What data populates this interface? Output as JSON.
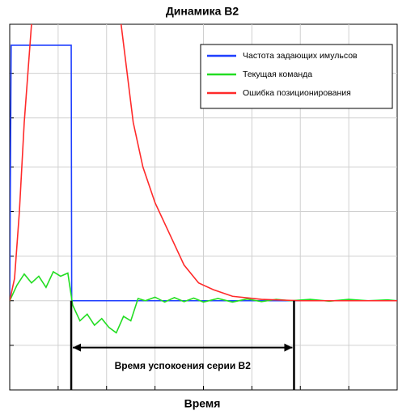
{
  "chart_data": {
    "type": "line",
    "title": "Динамика В2",
    "xlabel": "Время",
    "xlim": [
      0,
      8
    ],
    "xticks": [
      1,
      2,
      3,
      4,
      5,
      6,
      7
    ],
    "ylim": [
      -2,
      6.2
    ],
    "yticks": [
      -1,
      0,
      1,
      2,
      3,
      4.1,
      5.1
    ],
    "grid": true,
    "legend": "upper right",
    "series": [
      {
        "name": "Частота задающих имульсов",
        "color": "#1f3fff",
        "x": [
          0,
          0.03,
          1.27,
          1.28,
          8
        ],
        "values": [
          0,
          5.73,
          5.73,
          0,
          0
        ]
      },
      {
        "name": "Текущая команда",
        "color": "#22dd22",
        "x": [
          0,
          0.15,
          0.3,
          0.45,
          0.6,
          0.75,
          0.9,
          1.05,
          1.2,
          1.3,
          1.45,
          1.6,
          1.75,
          1.9,
          2.05,
          2.2,
          2.35,
          2.5,
          2.65,
          2.8,
          3.0,
          3.2,
          3.4,
          3.6,
          3.8,
          4.0,
          4.3,
          4.6,
          4.9,
          5.2,
          5.5,
          5.8,
          6.2,
          6.6,
          7.0,
          7.4,
          7.8,
          8
        ],
        "values": [
          0,
          0.35,
          0.6,
          0.4,
          0.55,
          0.3,
          0.65,
          0.55,
          0.62,
          -0.1,
          -0.45,
          -0.3,
          -0.55,
          -0.4,
          -0.6,
          -0.72,
          -0.35,
          -0.45,
          0.05,
          0.0,
          0.08,
          -0.03,
          0.07,
          -0.02,
          0.06,
          -0.03,
          0.05,
          -0.03,
          0.04,
          -0.02,
          0.03,
          0.0,
          0.03,
          -0.01,
          0.03,
          0.0,
          0.02,
          0.0
        ]
      },
      {
        "name": "Ошибка позиционирования",
        "color": "#ff2a2a",
        "x": [
          0,
          0.1,
          0.2,
          0.3,
          0.45,
          0.55,
          2.2,
          2.3,
          2.55,
          2.75,
          3.0,
          3.3,
          3.6,
          3.9,
          4.2,
          4.6,
          5.2,
          6.0,
          8
        ],
        "values": [
          0,
          0.5,
          2,
          4,
          6.2,
          7.5,
          7.5,
          6.2,
          4,
          3,
          2.2,
          1.5,
          0.8,
          0.4,
          0.25,
          0.1,
          0.03,
          0,
          0
        ]
      }
    ],
    "annotation": {
      "text": "Время успокоения серии В2",
      "x": [
        1.27,
        5.87
      ],
      "y": -1.05
    }
  }
}
